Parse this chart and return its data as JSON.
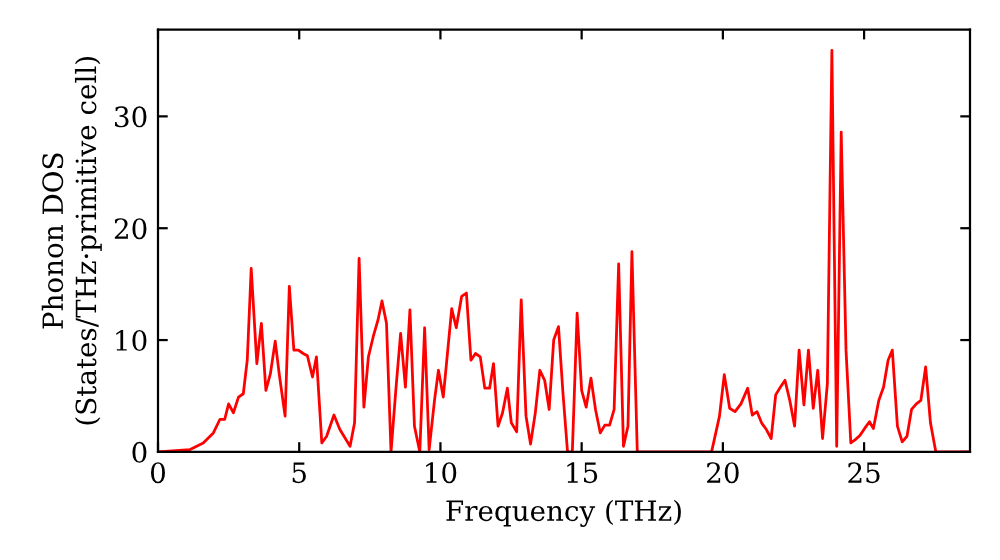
{
  "chart_data": {
    "type": "line",
    "xlabel": "Frequency (THz)",
    "ylabel": "Phonon DOS\n(States/THz·primitive cell)",
    "x": [
      0,
      1.12,
      1.6,
      1.96,
      2.19,
      2.36,
      2.5,
      2.67,
      2.85,
      3.02,
      3.16,
      3.3,
      3.5,
      3.66,
      3.82,
      3.98,
      4.15,
      4.29,
      4.5,
      4.65,
      4.81,
      4.97,
      5.14,
      5.29,
      5.47,
      5.61,
      5.8,
      5.97,
      6.23,
      6.44,
      6.8,
      6.96,
      7.12,
      7.29,
      7.45,
      7.62,
      7.79,
      7.93,
      8.09,
      8.25,
      8.42,
      8.59,
      8.76,
      8.92,
      9.08,
      9.27,
      9.44,
      9.6,
      9.79,
      9.93,
      10.1,
      10.4,
      10.56,
      10.75,
      10.92,
      11.08,
      11.24,
      11.41,
      11.57,
      11.74,
      11.88,
      12.04,
      12.2,
      12.37,
      12.51,
      12.7,
      12.86,
      13.03,
      13.19,
      13.36,
      13.52,
      13.69,
      13.85,
      14.01,
      14.18,
      14.34,
      14.5,
      14.67,
      14.84,
      15.0,
      15.16,
      15.33,
      15.49,
      15.66,
      15.82,
      15.99,
      16.15,
      16.31,
      16.48,
      16.64,
      16.78,
      16.97,
      19.6,
      19.88,
      20.05,
      20.24,
      20.43,
      20.64,
      20.88,
      21.04,
      21.21,
      21.37,
      21.54,
      21.71,
      21.87,
      22.04,
      22.2,
      22.37,
      22.54,
      22.7,
      22.87,
      23.03,
      23.2,
      23.36,
      23.53,
      23.7,
      23.86,
      24.03,
      24.19,
      24.36,
      24.53,
      24.69,
      24.86,
      25.02,
      25.19,
      25.33,
      25.52,
      25.69,
      25.85,
      26.0,
      26.18,
      26.35,
      26.52,
      26.68,
      26.85,
      27.01,
      27.18,
      27.35,
      27.54,
      28.75
    ],
    "series": [
      {
        "color": "#ff0000",
        "values": [
          0,
          0.2,
          0.8,
          1.7,
          2.9,
          2.9,
          4.3,
          3.5,
          4.9,
          5.2,
          8.2,
          16.4,
          7.9,
          11.5,
          5.5,
          7.0,
          9.9,
          7.0,
          3.2,
          14.8,
          9.1,
          9.1,
          8.8,
          8.6,
          6.7,
          8.5,
          0.8,
          1.4,
          3.3,
          2.0,
          0.5,
          2.6,
          17.3,
          4.0,
          8.5,
          10.3,
          11.8,
          13.5,
          11.5,
          0,
          5.5,
          10.6,
          5.8,
          12.7,
          2.3,
          0,
          11.1,
          0.2,
          4.6,
          7.3,
          4.9,
          12.8,
          11.1,
          13.9,
          14.2,
          8.2,
          8.8,
          8.5,
          5.7,
          5.7,
          7.9,
          2.3,
          3.5,
          5.7,
          2.6,
          1.8,
          13.6,
          3.2,
          0.7,
          3.5,
          7.3,
          6.4,
          3.8,
          10,
          11.2,
          5.2,
          0,
          0,
          12.4,
          5.5,
          4,
          6.6,
          3.8,
          1.7,
          2.4,
          2.4,
          3.8,
          16.8,
          0.5,
          2.3,
          17.9,
          0,
          0,
          3.2,
          6.9,
          3.9,
          3.6,
          4.3,
          5.7,
          3.3,
          3.6,
          2.6,
          2.0,
          1.2,
          5.1,
          5.8,
          6.4,
          4.6,
          2.3,
          9.1,
          4.2,
          9.1,
          3.9,
          7.3,
          1.2,
          6.1,
          35.9,
          0.5,
          28.6,
          9.1,
          0.8,
          1.1,
          1.5,
          2.1,
          2.7,
          2.1,
          4.6,
          5.8,
          8.2,
          9.1,
          2.3,
          0.9,
          1.4,
          3.8,
          4.3,
          4.6,
          7.6,
          2.6,
          0,
          0
        ]
      }
    ],
    "xlim": [
      0,
      28.75
    ],
    "ylim": [
      0,
      37.75
    ],
    "xticks": [
      0,
      5,
      10,
      15,
      20,
      25
    ],
    "yticks": [
      0,
      10,
      20,
      30
    ],
    "grid": false,
    "marker": "none",
    "line_style": "solid"
  }
}
